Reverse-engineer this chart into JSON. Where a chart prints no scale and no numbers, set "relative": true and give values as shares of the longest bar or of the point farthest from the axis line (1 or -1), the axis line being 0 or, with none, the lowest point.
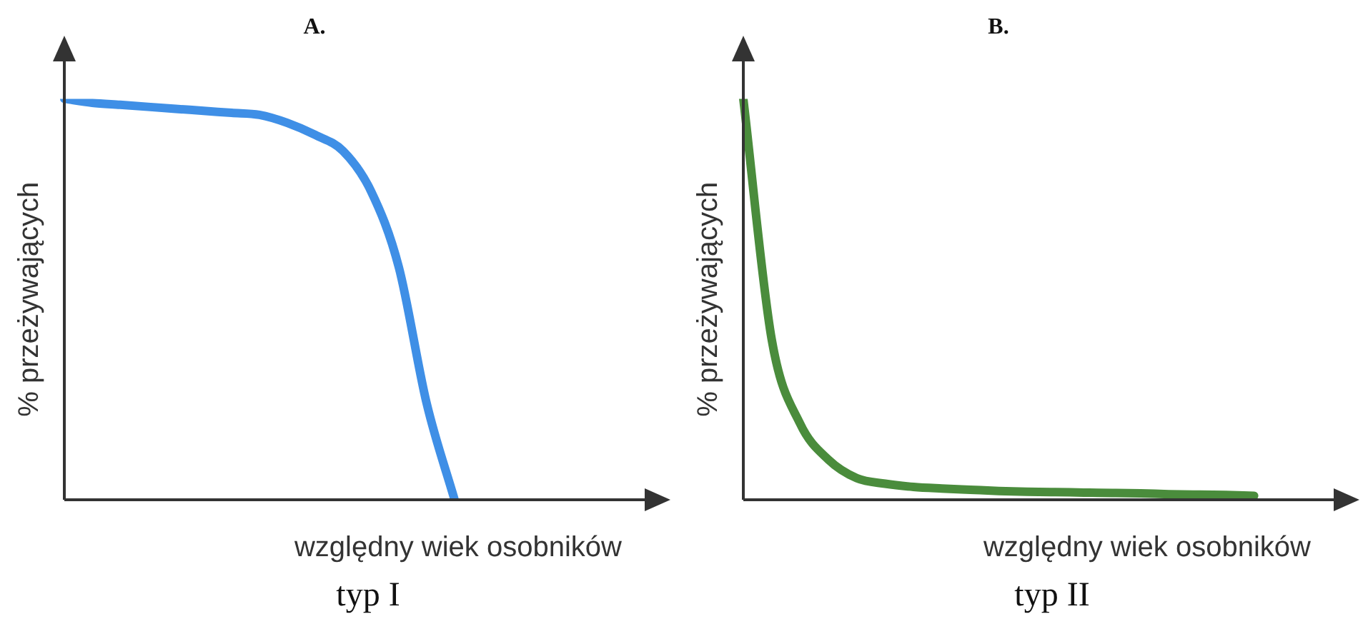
{
  "chart_data": [
    {
      "type": "line",
      "title": "A.",
      "xlabel": "względny wiek osobników",
      "ylabel": "% przeżywających",
      "relative": true,
      "legend": false,
      "grid": false,
      "marker": "none",
      "categories": [
        null,
        null,
        null,
        null,
        null,
        null,
        null,
        null,
        null,
        null,
        null,
        null,
        null,
        null,
        null,
        null,
        null,
        null,
        null,
        null,
        null
      ],
      "series": [
        {
          "color": "#3f8fe6",
          "values": [
            1,
            0.99,
            0.985,
            0.98,
            0.975,
            0.97,
            0.965,
            0.96,
            0.94,
            0.91,
            0.87,
            0.77,
            0.58,
            0.24,
            0,
            null,
            null,
            null,
            null,
            null,
            null
          ]
        }
      ],
      "annotations": [
        "typ I"
      ]
    },
    {
      "type": "line",
      "title": "B.",
      "xlabel": "względny wiek osobników",
      "ylabel": "% przeżywających",
      "relative": true,
      "legend": false,
      "grid": false,
      "marker": "none",
      "categories": [
        null,
        null,
        null,
        null,
        null,
        null,
        null,
        null,
        null,
        null,
        null,
        null,
        null,
        null,
        null,
        null,
        null,
        null,
        null,
        null,
        null
      ],
      "series": [
        {
          "color": "#4a8c3c",
          "values": [
            1,
            0.4,
            0.19,
            0.1,
            0.054,
            0.04,
            0.032,
            0.028,
            0.025,
            0.022,
            0.02,
            0.019,
            0.018,
            0.017,
            0.016,
            0.014,
            0.013,
            0.012,
            0.01,
            null,
            null
          ]
        }
      ],
      "annotations": [
        "typ II"
      ]
    }
  ]
}
